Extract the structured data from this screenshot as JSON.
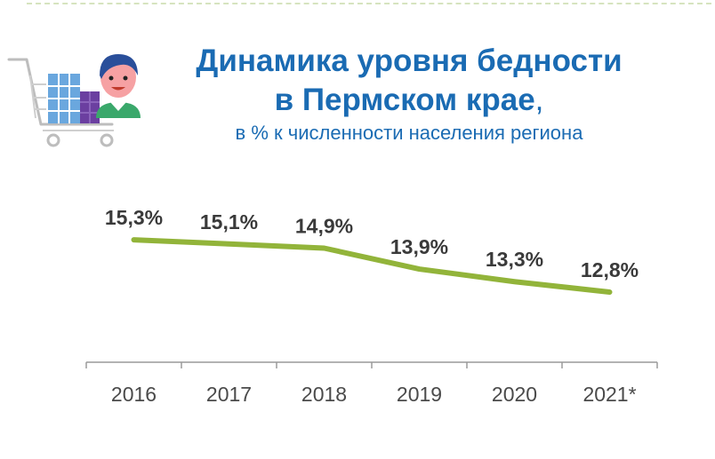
{
  "header": {
    "title_line1": "Динамика уровня бедности",
    "title_line2": "в Пермском крае",
    "title_comma": ",",
    "subtitle": "в % к численности населения региона"
  },
  "illustration": {
    "icon": "shopping-cart-person-icon"
  },
  "colors": {
    "title": "#1a6bb3",
    "line": "#92b43a",
    "axis": "#9a9a9a",
    "labels": "#3a3a3a"
  },
  "chart_data": {
    "type": "line",
    "categories": [
      "2016",
      "2017",
      "2018",
      "2019",
      "2020",
      "2021*"
    ],
    "series": [
      {
        "values": [
          15.3,
          15.1,
          14.9,
          13.9,
          13.3,
          12.8
        ]
      }
    ],
    "data_labels": [
      "15,3%",
      "15,1%",
      "14,9%",
      "13,9%",
      "13,3%",
      "12,8%"
    ],
    "ylim": [
      10,
      17
    ],
    "grid": false,
    "legend": "none"
  }
}
